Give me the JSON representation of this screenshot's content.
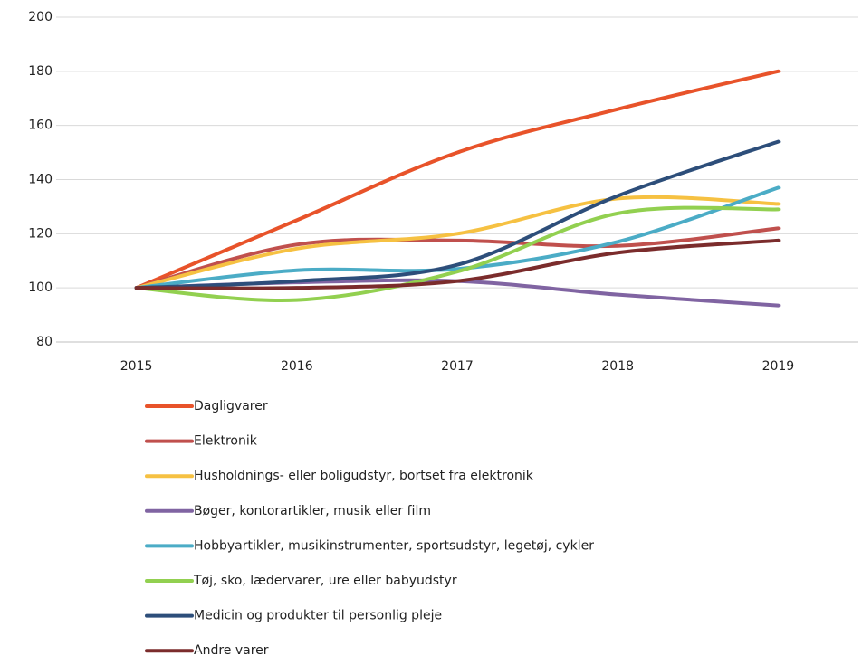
{
  "chart_data": {
    "type": "line",
    "smooth": true,
    "categories": [
      "2015",
      "2016",
      "2017",
      "2018",
      "2019"
    ],
    "series": [
      {
        "name": "Dagligvarer",
        "color": "#e8532a",
        "values": [
          100,
          125,
          150,
          166,
          180
        ]
      },
      {
        "name": "Elektronik",
        "color": "#c0504d",
        "values": [
          100,
          116,
          117.5,
          115.5,
          122
        ]
      },
      {
        "name": "Husholdnings- eller boligudstyr, bortset fra elektronik",
        "color": "#f6c142",
        "values": [
          100,
          114.5,
          120,
          133,
          131
        ]
      },
      {
        "name": "Bøger, kontorartikler, musik eller film",
        "color": "#8064a2",
        "values": [
          100,
          102,
          102.5,
          97.5,
          93.5
        ]
      },
      {
        "name": "Hobbyartikler, musikinstrumenter, sportsudstyr, legetøj, cykler",
        "color": "#4bacc6",
        "values": [
          100,
          106.5,
          107,
          117,
          137
        ]
      },
      {
        "name": "Tøj, sko, lædervarer, ure eller babyudstyr",
        "color": "#92d050",
        "values": [
          100,
          95.5,
          106,
          127.5,
          129
        ]
      },
      {
        "name": "Medicin og produkter til personlig pleje",
        "color": "#2d4e7a",
        "values": [
          100,
          102.5,
          108.5,
          134,
          154
        ]
      },
      {
        "name": "Andre varer",
        "color": "#7b2c2c",
        "values": [
          100,
          100,
          102.5,
          113,
          117.5
        ]
      }
    ],
    "ylim": [
      80,
      200
    ],
    "yticks": [
      80,
      100,
      120,
      140,
      160,
      180,
      200
    ],
    "grid": true
  }
}
